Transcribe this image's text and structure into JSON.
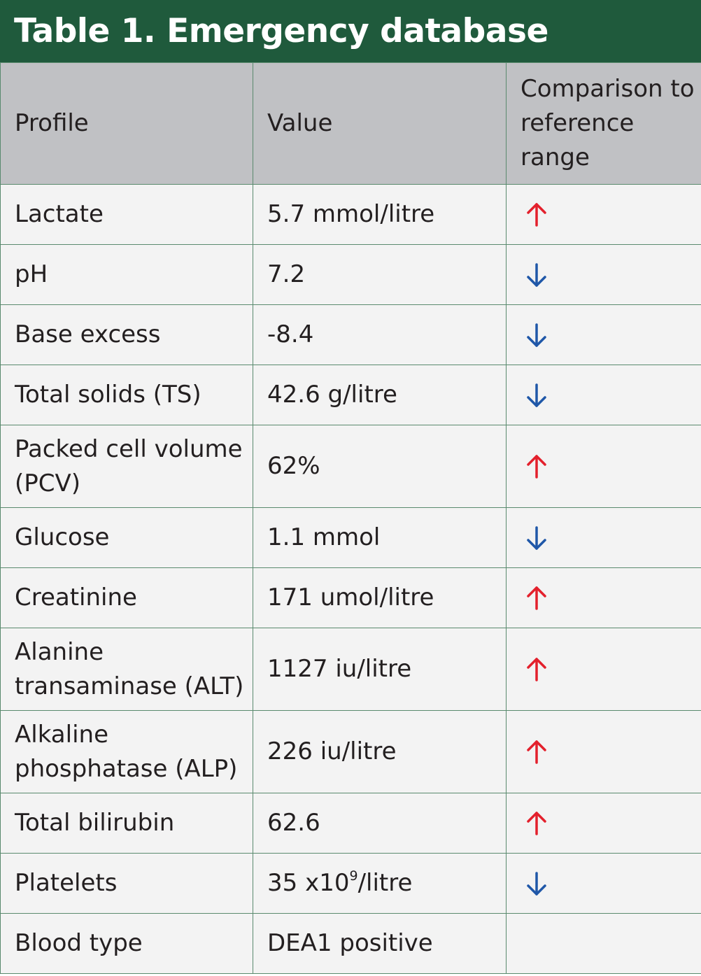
{
  "title": "Table 1. Emergency database",
  "colors": {
    "title_bg": "#1f5a3c",
    "header_bg": "#c0c1c4",
    "row_bg": "#f3f3f3",
    "up_arrow": "#e3202c",
    "down_arrow": "#1f57a8"
  },
  "columns": {
    "profile": "Profile",
    "value": "Value",
    "comparison": "Comparison to reference range"
  },
  "rows": [
    {
      "profile": "Lactate",
      "value": "5.7 mmol/litre",
      "trend": "up"
    },
    {
      "profile": "pH",
      "value": "7.2",
      "trend": "down"
    },
    {
      "profile": "Base excess",
      "value": "-8.4",
      "trend": "down"
    },
    {
      "profile": "Total solids (TS)",
      "value": "42.6 g/litre",
      "trend": "down"
    },
    {
      "profile": "Packed cell volume (PCV)",
      "value": "62%",
      "trend": "up"
    },
    {
      "profile": "Glucose",
      "value": "1.1 mmol",
      "trend": "down"
    },
    {
      "profile": "Creatinine",
      "value": "171 umol/litre",
      "trend": "up"
    },
    {
      "profile": "Alanine transaminase (ALT)",
      "value": "1127 iu/litre",
      "trend": "up"
    },
    {
      "profile": "Alkaline phosphatase (ALP)",
      "value": "226 iu/litre",
      "trend": "up"
    },
    {
      "profile": "Total bilirubin",
      "value": "62.6",
      "trend": "up"
    },
    {
      "profile": "Platelets",
      "value_prefix": "35 x10",
      "value_sup": "9",
      "value_suffix": "/litre",
      "trend": "down"
    },
    {
      "profile": "Blood type",
      "value": "DEA1 positive",
      "trend": ""
    }
  ],
  "icons": {
    "up": "arrow-up-icon",
    "down": "arrow-down-icon"
  }
}
